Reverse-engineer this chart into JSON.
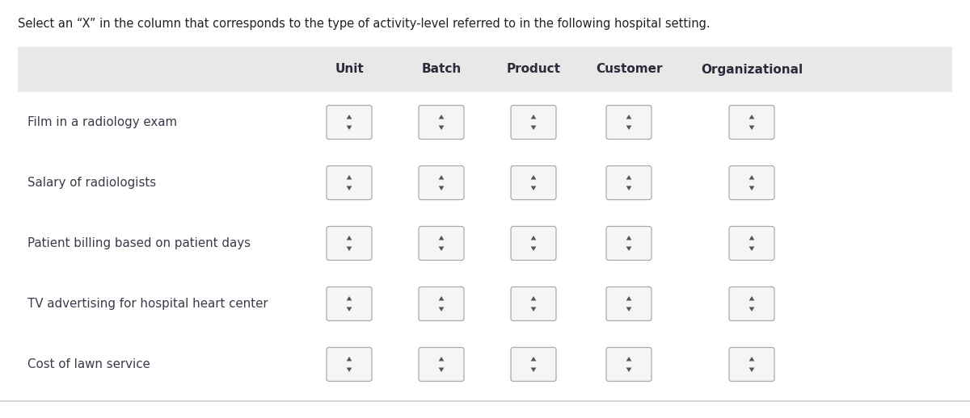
{
  "title": "Select an “X” in the column that corresponds to the type of activity-level referred to in the following hospital setting.",
  "col_headers": [
    "Unit",
    "Batch",
    "Product",
    "Customer",
    "Organizational"
  ],
  "row_labels": [
    "Film in a radiology exam",
    "Salary of radiologists",
    "Patient billing based on patient days",
    "TV advertising for hospital heart center",
    "Cost of lawn service"
  ],
  "white_bg": "#ffffff",
  "table_bg": "#e8e8e8",
  "row_bg": "#ffffff",
  "box_fill": "#e8e8e8",
  "box_fill_light": "#f5f5f5",
  "box_border": "#aaaaaa",
  "text_color": "#3a3a4a",
  "header_text_color": "#2a2a3a",
  "title_color": "#222222",
  "arrow_color": "#555555",
  "bottom_line_color": "#cccccc",
  "fig_width": 12.0,
  "fig_height": 5.18,
  "dpi": 100
}
